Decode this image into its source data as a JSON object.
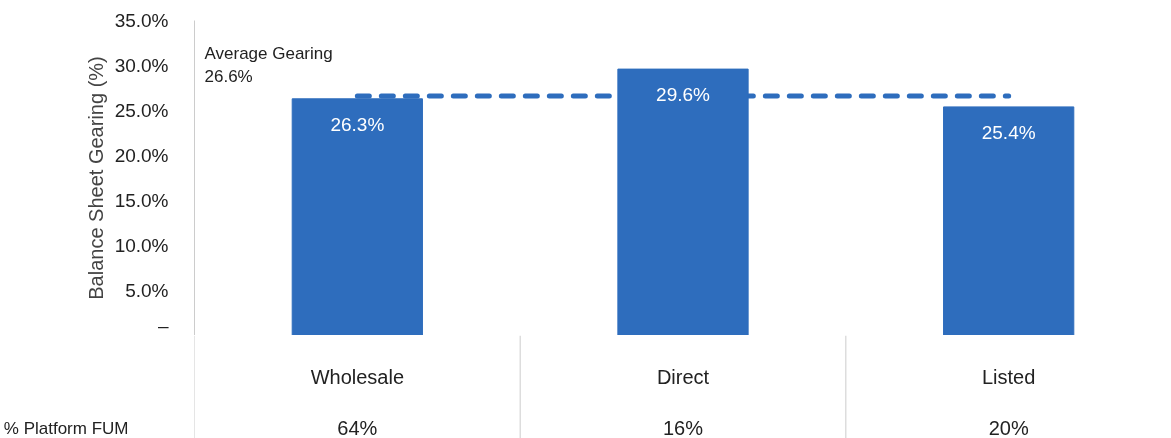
{
  "chart_data": {
    "type": "bar",
    "ylabel": "Balance Sheet Gearing (%)",
    "categories": [
      "Wholesale",
      "Direct",
      "Listed"
    ],
    "values": [
      26.3,
      29.6,
      25.4
    ],
    "value_labels": [
      "26.3%",
      "29.6%",
      "25.4%"
    ],
    "color": "#2e6dbd",
    "ylim": [
      0,
      35
    ],
    "yticks": [
      {
        "value": 0,
        "label": "–"
      },
      {
        "value": 5,
        "label": "5.0%"
      },
      {
        "value": 10,
        "label": "10.0%"
      },
      {
        "value": 15,
        "label": "15.0%"
      },
      {
        "value": 20,
        "label": "20.0%"
      },
      {
        "value": 25,
        "label": "25.0%"
      },
      {
        "value": 30,
        "label": "30.0%"
      },
      {
        "value": 35,
        "label": "35.0%"
      }
    ],
    "ref_lines": [
      {
        "axis": "y",
        "value": 26.6,
        "label": "Average Gearing\n26.6%",
        "color": "#2e6dbd",
        "line_style": "dashed"
      }
    ],
    "annotations": [
      "% Platform FUM",
      "64%",
      "16%",
      "20%"
    ],
    "grid": false
  }
}
